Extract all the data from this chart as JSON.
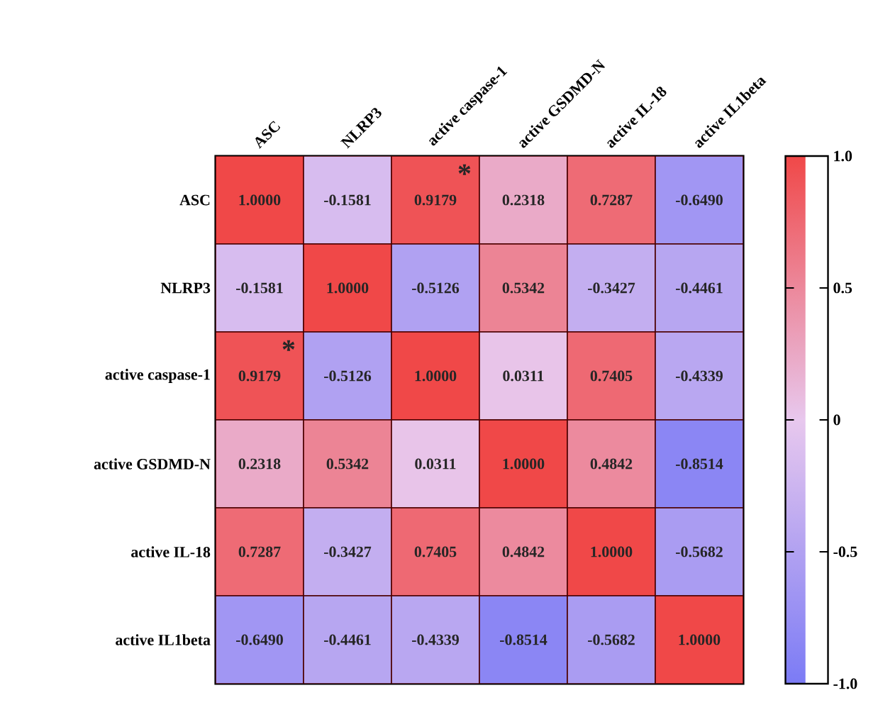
{
  "chart_data": {
    "type": "heatmap",
    "categories": [
      "ASC",
      "NLRP3",
      "active caspase-1",
      "active GSDMD-N",
      "active IL-18",
      "active IL1beta"
    ],
    "y_categories": [
      "ASC",
      "NLRP3",
      "active caspase-1",
      "active GSDMD-N",
      "active IL-18",
      "active IL1beta"
    ],
    "cells": [
      [
        1.0,
        -0.1581,
        0.9179,
        0.2318,
        0.7287,
        -0.649
      ],
      [
        -0.1581,
        1.0,
        -0.5126,
        0.5342,
        -0.3427,
        -0.4461
      ],
      [
        0.9179,
        -0.5126,
        1.0,
        0.0311,
        0.7405,
        -0.4339
      ],
      [
        0.2318,
        0.5342,
        0.0311,
        1.0,
        0.4842,
        -0.8514
      ],
      [
        0.7287,
        -0.3427,
        0.7405,
        0.4842,
        1.0,
        -0.5682
      ],
      [
        -0.649,
        -0.4461,
        -0.4339,
        -0.8514,
        -0.5682,
        1.0
      ]
    ],
    "cell_labels": [
      [
        "1.0000",
        "-0.1581",
        "0.9179",
        "0.2318",
        "0.7287",
        "-0.6490"
      ],
      [
        "-0.1581",
        "1.0000",
        "-0.5126",
        "0.5342",
        "-0.3427",
        "-0.4461"
      ],
      [
        "0.9179",
        "-0.5126",
        "1.0000",
        "0.0311",
        "0.7405",
        "-0.4339"
      ],
      [
        "0.2318",
        "0.5342",
        "0.0311",
        "1.0000",
        "0.4842",
        "-0.8514"
      ],
      [
        "0.7287",
        "-0.3427",
        "0.7405",
        "0.4842",
        "1.0000",
        "-0.5682"
      ],
      [
        "-0.6490",
        "-0.4461",
        "-0.4339",
        "-0.8514",
        "-0.5682",
        "1.0000"
      ]
    ],
    "colors": [
      "#7b7bf5",
      "#e8c8ee",
      "#f04848"
    ],
    "clim": [
      -1.0,
      1.0
    ],
    "cticks": [
      {
        "value": -1.0,
        "label": "-1.0"
      },
      -0.5,
      0,
      0.5,
      {
        "value": 1.0,
        "label": "1.0"
      }
    ],
    "annotations": [
      "*",
      "*"
    ]
  }
}
